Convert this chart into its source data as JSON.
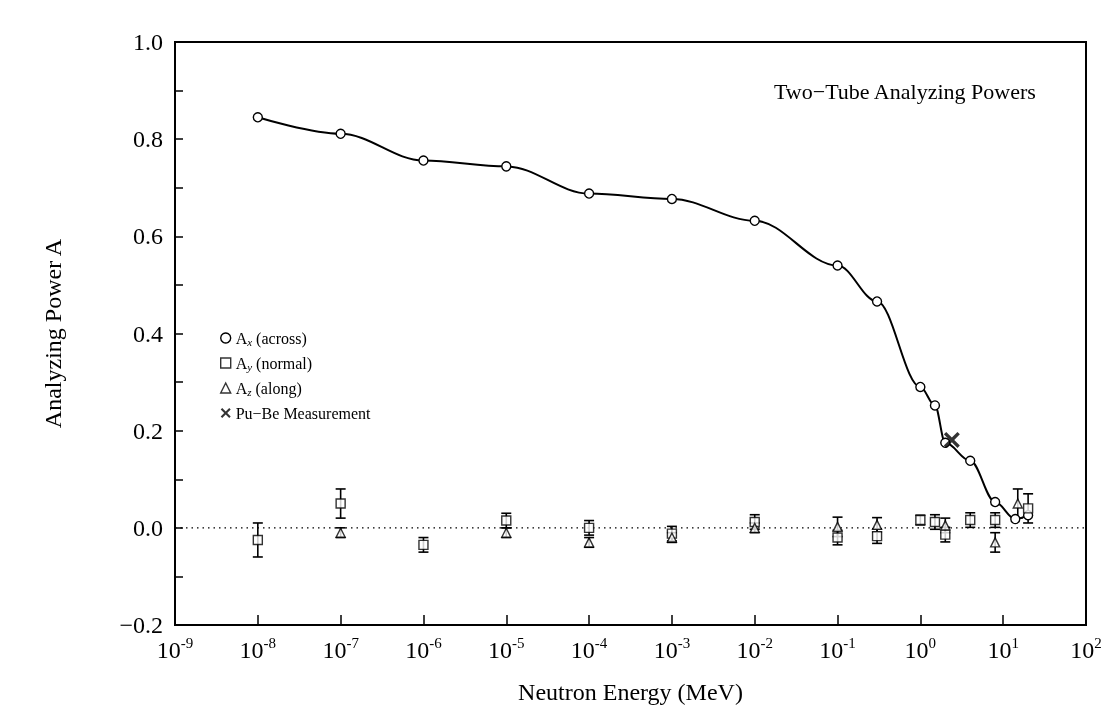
{
  "chart_data": {
    "type": "scatter",
    "title": "Two−Tube Analyzing Powers",
    "xlabel": "Neutron Energy (MeV)",
    "ylabel": "Analyzing Power A",
    "log": "x",
    "xlim": [
      1e-09,
      100
    ],
    "ylim": [
      -0.2,
      1.0
    ],
    "xticks": [
      {
        "value": 1e-09,
        "label": "10$^{-9}$"
      },
      {
        "value": 1e-08,
        "label": "10$^{-8}$"
      },
      {
        "value": 1e-07,
        "label": "10$^{-7}$"
      },
      {
        "value": 1e-06,
        "label": "10$^{-6}$"
      },
      {
        "value": 1e-05,
        "label": "10$^{-5}$"
      },
      {
        "value": 0.0001,
        "label": "10$^{-4}$"
      },
      {
        "value": 0.001,
        "label": "10$^{-3}$"
      },
      {
        "value": 0.01,
        "label": "10$^{-2}$"
      },
      {
        "value": 0.1,
        "label": "10$^{-1}$"
      },
      {
        "value": 1,
        "label": "10$^{0}$"
      },
      {
        "value": 10,
        "label": "10$^{1}$"
      },
      {
        "value": 100,
        "label": "10$^{2}$"
      }
    ],
    "yticks": [
      {
        "value": -0.2,
        "label": "−0.2"
      },
      {
        "value": -0.1,
        "label": null
      },
      {
        "value": 0,
        "label": "0.0"
      },
      {
        "value": 0.1,
        "label": null
      },
      {
        "value": 0.2,
        "label": "0.2"
      },
      {
        "value": 0.3,
        "label": null
      },
      {
        "value": 0.4,
        "label": "0.4"
      },
      {
        "value": 0.5,
        "label": null
      },
      {
        "value": 0.6,
        "label": "0.6"
      },
      {
        "value": 0.7,
        "label": null
      },
      {
        "value": 0.8,
        "label": "0.8"
      },
      {
        "value": 0.9,
        "label": null
      },
      {
        "value": 1.0,
        "label": "1.0"
      }
    ],
    "grid": false,
    "legend": "left",
    "ref_lines": [
      {
        "axis": "y",
        "value": 0,
        "line_style": "dotted",
        "color": "#000000"
      }
    ],
    "series": [
      {
        "name": "A$_{x}$ (across)",
        "type": "line",
        "marker": "circle",
        "line_style": "solid",
        "color": "#000000",
        "x": [
          1e-08,
          1e-07,
          1e-06,
          1e-05,
          0.0001,
          0.001,
          0.01,
          0.1,
          0.3,
          1,
          1.5,
          2,
          4,
          8,
          14,
          20
        ],
        "values": [
          0.845,
          0.811,
          0.756,
          0.744,
          0.688,
          0.677,
          0.632,
          0.54,
          0.466,
          0.29,
          0.252,
          0.175,
          0.138,
          0.053,
          0.018,
          0.026
        ]
      },
      {
        "name": "A$_{y}$ (normal)",
        "marker": "square",
        "color": "#000000",
        "x": [
          1e-08,
          1e-07,
          1e-06,
          1e-05,
          0.0001,
          0.001,
          0.01,
          0.1,
          0.3,
          1,
          1.5,
          2,
          4,
          8,
          20
        ],
        "values": [
          -0.025,
          0.05,
          -0.035,
          0.015,
          0.0,
          -0.012,
          0.012,
          -0.02,
          -0.017,
          0.016,
          0.012,
          -0.014,
          0.016,
          0.016,
          0.04
        ],
        "errors": [
          0.035,
          0.03,
          0.015,
          0.015,
          0.015,
          0.015,
          0.015,
          0.015,
          0.015,
          0.01,
          0.015,
          0.015,
          0.015,
          0.015,
          0.03
        ]
      },
      {
        "name": "A$_{z}$ (along)",
        "marker": "triangle",
        "color": "#000000",
        "x": [
          1e-07,
          1e-05,
          0.0001,
          0.001,
          0.01,
          0.1,
          0.3,
          2,
          8,
          15
        ],
        "values": [
          -0.01,
          -0.01,
          -0.03,
          -0.02,
          0.0,
          0.002,
          0.006,
          0.005,
          -0.03,
          0.05
        ],
        "errors": [
          0.01,
          0.01,
          0.01,
          0.01,
          0.01,
          0.02,
          0.015,
          0.015,
          0.02,
          0.03
        ]
      },
      {
        "name": "Pu−Be Measurement",
        "marker": "cross",
        "color": "#000000",
        "x": [
          2.4
        ],
        "values": [
          0.181
        ]
      }
    ]
  }
}
